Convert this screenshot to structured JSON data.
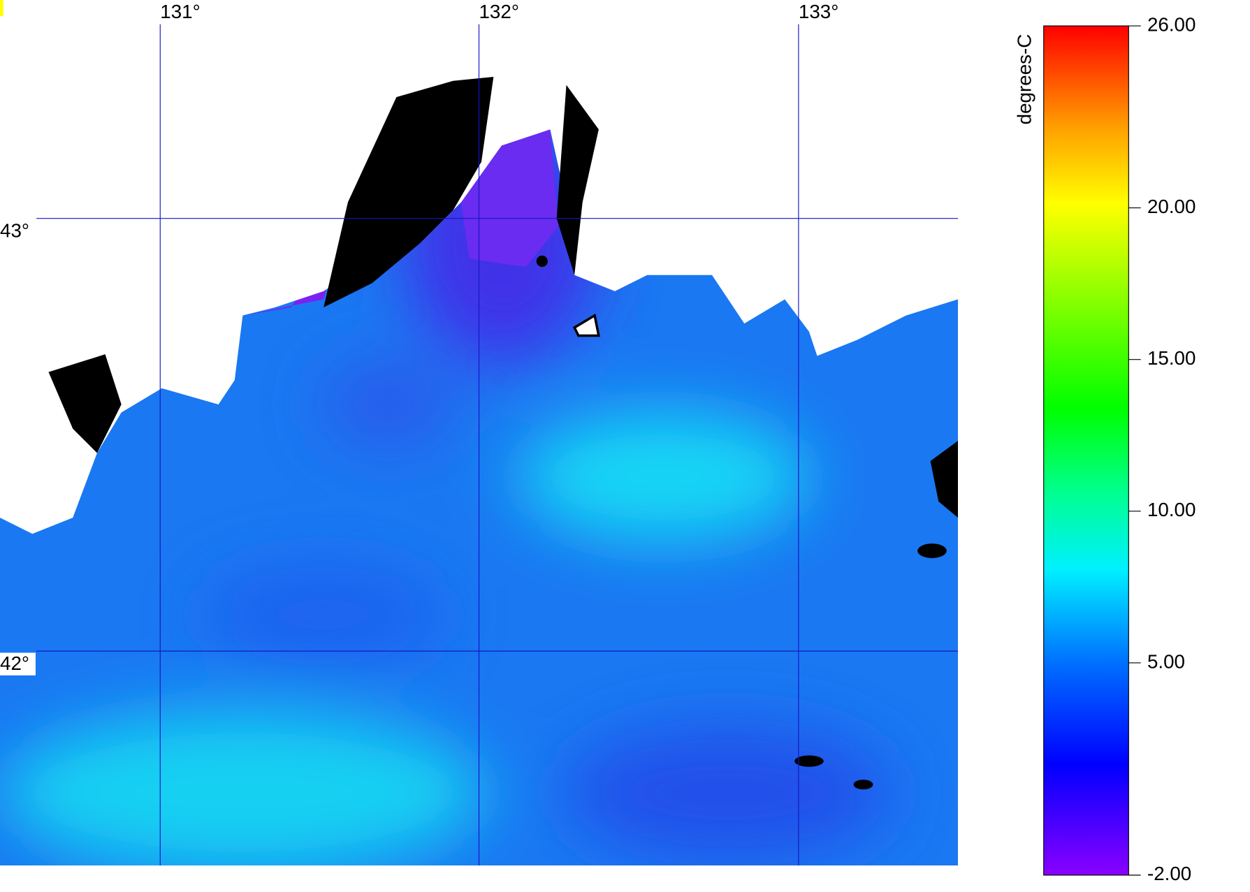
{
  "map": {
    "lon_labels": [
      "131°",
      "132°",
      "133°"
    ],
    "lat_labels": [
      "43°",
      "42°"
    ]
  },
  "colorbar": {
    "label": "degrees-C",
    "ticks": [
      {
        "value": 26,
        "label": "26.00"
      },
      {
        "value": 20,
        "label": "20.00"
      },
      {
        "value": 15,
        "label": "15.00"
      },
      {
        "value": 10,
        "label": "10.00"
      },
      {
        "value": 5,
        "label": "5.00"
      },
      {
        "value": -2,
        "label": "-2.00"
      }
    ]
  }
}
